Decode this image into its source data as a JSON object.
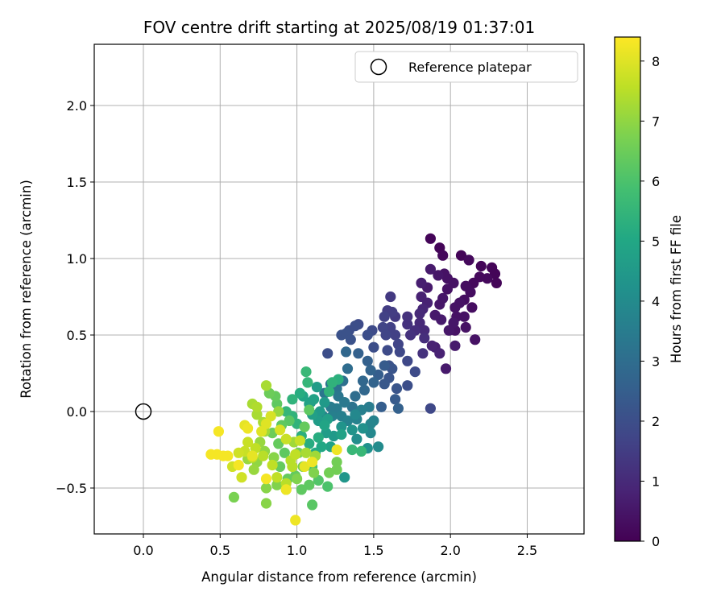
{
  "chart_data": {
    "type": "scatter",
    "title": "FOV centre drift starting at 2025/08/19 01:37:01",
    "xlabel": "Angular distance from reference (arcmin)",
    "ylabel": "Rotation from reference (arcmin)",
    "xlim": [
      -0.32,
      2.87
    ],
    "ylim": [
      -0.8,
      2.4
    ],
    "x_ticks": [
      "0.0",
      "0.5",
      "1.0",
      "1.5",
      "2.0",
      "2.5"
    ],
    "y_ticks": [
      "−0.5",
      "0.0",
      "0.5",
      "1.0",
      "1.5",
      "2.0"
    ],
    "grid": true,
    "legend": {
      "position": "top-right",
      "entries": [
        "Reference platepar"
      ]
    },
    "reference_point": {
      "x": 0.0,
      "y": 0.0
    },
    "colorbar": {
      "label": "Hours from first FF file",
      "min": 0,
      "max": 8.4,
      "ticks": [
        "0",
        "1",
        "2",
        "3",
        "4",
        "5",
        "6",
        "7",
        "8"
      ],
      "colormap": "viridis"
    },
    "series": [
      {
        "columns": [
          "x",
          "y",
          "hours"
        ],
        "points": [
          [
            1.87,
            1.13,
            0.1
          ],
          [
            1.93,
            1.07,
            0.1
          ],
          [
            1.95,
            1.02,
            0.2
          ],
          [
            2.07,
            1.02,
            0.1
          ],
          [
            2.12,
            0.99,
            0.2
          ],
          [
            2.2,
            0.95,
            0.1
          ],
          [
            2.27,
            0.94,
            0.1
          ],
          [
            2.29,
            0.9,
            0.1
          ],
          [
            2.24,
            0.87,
            0.2
          ],
          [
            2.3,
            0.84,
            0.1
          ],
          [
            2.19,
            0.88,
            0.2
          ],
          [
            2.15,
            0.84,
            0.2
          ],
          [
            2.1,
            0.82,
            0.3
          ],
          [
            2.13,
            0.78,
            0.3
          ],
          [
            2.09,
            0.73,
            0.3
          ],
          [
            2.06,
            0.71,
            0.4
          ],
          [
            2.03,
            0.68,
            0.4
          ],
          [
            2.14,
            0.68,
            0.3
          ],
          [
            2.09,
            0.62,
            0.4
          ],
          [
            2.04,
            0.62,
            0.4
          ],
          [
            2.02,
            0.58,
            0.5
          ],
          [
            2.1,
            0.55,
            0.4
          ],
          [
            2.16,
            0.47,
            0.4
          ],
          [
            1.99,
            0.53,
            0.5
          ],
          [
            2.03,
            0.53,
            0.4
          ],
          [
            2.03,
            0.43,
            0.6
          ],
          [
            1.97,
            0.28,
            0.6
          ],
          [
            1.9,
            0.42,
            0.7
          ],
          [
            1.93,
            0.38,
            0.8
          ],
          [
            1.88,
            0.43,
            0.8
          ],
          [
            1.94,
            0.6,
            0.6
          ],
          [
            1.9,
            0.63,
            0.6
          ],
          [
            1.93,
            0.7,
            0.5
          ],
          [
            1.95,
            0.74,
            0.5
          ],
          [
            1.98,
            0.8,
            0.4
          ],
          [
            2.02,
            0.84,
            0.4
          ],
          [
            1.98,
            0.87,
            0.4
          ],
          [
            1.96,
            0.9,
            0.4
          ],
          [
            1.92,
            0.89,
            0.5
          ],
          [
            1.87,
            0.93,
            0.6
          ],
          [
            1.81,
            0.84,
            0.7
          ],
          [
            1.85,
            0.81,
            0.6
          ],
          [
            1.81,
            0.75,
            0.8
          ],
          [
            1.85,
            0.71,
            0.8
          ],
          [
            1.82,
            0.67,
            0.9
          ],
          [
            1.8,
            0.64,
            1.0
          ],
          [
            1.8,
            0.58,
            1.0
          ],
          [
            1.83,
            0.53,
            1.0
          ],
          [
            1.77,
            0.53,
            1.1
          ],
          [
            1.74,
            0.5,
            1.2
          ],
          [
            1.83,
            0.48,
            1.1
          ],
          [
            1.82,
            0.38,
            1.2
          ],
          [
            1.72,
            0.57,
            1.2
          ],
          [
            1.72,
            0.62,
            1.2
          ],
          [
            1.64,
            0.62,
            1.4
          ],
          [
            1.59,
            0.66,
            1.5
          ],
          [
            1.62,
            0.65,
            1.5
          ],
          [
            1.61,
            0.75,
            1.4
          ],
          [
            1.57,
            0.62,
            1.6
          ],
          [
            1.56,
            0.55,
            1.7
          ],
          [
            1.61,
            0.55,
            1.6
          ],
          [
            1.58,
            0.5,
            1.7
          ],
          [
            1.64,
            0.5,
            1.6
          ],
          [
            1.66,
            0.44,
            1.7
          ],
          [
            1.67,
            0.39,
            1.8
          ],
          [
            1.72,
            0.33,
            1.8
          ],
          [
            1.59,
            0.4,
            1.9
          ],
          [
            1.49,
            0.53,
            1.9
          ],
          [
            1.5,
            0.42,
            2.0
          ],
          [
            1.46,
            0.5,
            2.0
          ],
          [
            1.4,
            0.57,
            1.9
          ],
          [
            1.38,
            0.56,
            2.0
          ],
          [
            1.34,
            0.53,
            2.0
          ],
          [
            1.29,
            0.5,
            2.1
          ],
          [
            1.32,
            0.51,
            2.1
          ],
          [
            1.35,
            0.47,
            2.1
          ],
          [
            1.2,
            0.38,
            2.0
          ],
          [
            1.77,
            0.26,
            1.9
          ],
          [
            1.87,
            0.02,
            1.8
          ],
          [
            1.72,
            0.17,
            2.0
          ],
          [
            1.65,
            0.15,
            2.2
          ],
          [
            1.64,
            0.08,
            2.4
          ],
          [
            1.55,
            0.03,
            2.5
          ],
          [
            1.6,
            0.22,
            2.2
          ],
          [
            1.62,
            0.28,
            2.2
          ],
          [
            1.57,
            0.3,
            2.4
          ],
          [
            1.53,
            0.24,
            2.5
          ],
          [
            1.5,
            0.19,
            2.7
          ],
          [
            1.44,
            0.14,
            2.8
          ],
          [
            1.48,
            0.27,
            2.7
          ],
          [
            1.46,
            0.33,
            2.6
          ],
          [
            1.4,
            0.38,
            2.6
          ],
          [
            1.43,
            0.2,
            2.8
          ],
          [
            1.38,
            0.1,
            3.0
          ],
          [
            1.36,
            0.03,
            3.2
          ],
          [
            1.32,
            0.39,
            2.8
          ],
          [
            1.33,
            0.28,
            3.0
          ],
          [
            1.3,
            0.2,
            3.1
          ],
          [
            1.26,
            0.15,
            3.2
          ],
          [
            1.22,
            0.18,
            3.2
          ],
          [
            1.18,
            0.12,
            3.3
          ],
          [
            1.27,
            0.1,
            3.3
          ],
          [
            1.31,
            0.06,
            3.4
          ],
          [
            1.26,
            0.02,
            3.5
          ],
          [
            1.22,
            0.03,
            3.5
          ],
          [
            1.17,
            -0.03,
            3.7
          ],
          [
            1.23,
            -0.03,
            3.6
          ],
          [
            1.29,
            -0.03,
            3.6
          ],
          [
            1.33,
            -0.06,
            3.7
          ],
          [
            1.39,
            -0.05,
            3.7
          ],
          [
            1.42,
            0.01,
            3.6
          ],
          [
            1.47,
            0.03,
            3.5
          ],
          [
            1.5,
            -0.06,
            3.7
          ],
          [
            1.48,
            -0.14,
            3.9
          ],
          [
            1.53,
            -0.23,
            4.0
          ],
          [
            1.46,
            -0.24,
            4.2
          ],
          [
            1.39,
            -0.18,
            4.1
          ],
          [
            1.43,
            -0.11,
            4.2
          ],
          [
            1.36,
            -0.12,
            4.3
          ],
          [
            1.29,
            -0.1,
            4.3
          ],
          [
            1.24,
            -0.16,
            4.5
          ],
          [
            1.19,
            -0.14,
            4.6
          ],
          [
            1.14,
            -0.06,
            4.6
          ],
          [
            1.15,
            0.0,
            4.5
          ],
          [
            1.1,
            -0.02,
            4.7
          ],
          [
            1.08,
            0.05,
            4.8
          ],
          [
            1.04,
            0.1,
            4.9
          ],
          [
            1.11,
            0.08,
            4.8
          ],
          [
            1.13,
            0.16,
            4.6
          ],
          [
            1.18,
            0.06,
            4.5
          ],
          [
            1.2,
            -0.05,
            4.7
          ],
          [
            1.31,
            -0.43,
            4.4
          ],
          [
            1.22,
            -0.23,
            4.8
          ],
          [
            1.16,
            -0.23,
            5.0
          ],
          [
            1.12,
            -0.27,
            5.1
          ],
          [
            1.08,
            -0.21,
            5.2
          ],
          [
            1.03,
            -0.16,
            5.3
          ],
          [
            1.0,
            -0.08,
            5.4
          ],
          [
            0.97,
            -0.03,
            5.4
          ],
          [
            0.93,
            0.0,
            5.5
          ],
          [
            0.97,
            0.08,
            5.4
          ],
          [
            1.02,
            0.12,
            5.2
          ],
          [
            1.06,
            0.26,
            5.6
          ],
          [
            1.07,
            0.19,
            5.5
          ],
          [
            1.23,
            0.19,
            5.4
          ],
          [
            1.27,
            0.21,
            5.3
          ],
          [
            1.21,
            0.13,
            5.4
          ],
          [
            1.42,
            -0.26,
            5.6
          ],
          [
            1.36,
            -0.25,
            5.6
          ],
          [
            1.1,
            -0.36,
            5.9
          ],
          [
            1.2,
            -0.49,
            6.0
          ],
          [
            1.14,
            -0.45,
            6.1
          ],
          [
            1.08,
            -0.48,
            6.3
          ],
          [
            1.03,
            -0.51,
            6.3
          ],
          [
            1.1,
            -0.61,
            6.2
          ],
          [
            0.99,
            -0.42,
            6.4
          ],
          [
            0.94,
            -0.44,
            6.4
          ],
          [
            0.89,
            -0.36,
            6.4
          ],
          [
            0.92,
            -0.27,
            6.3
          ],
          [
            0.88,
            -0.21,
            6.4
          ],
          [
            0.84,
            -0.14,
            6.5
          ],
          [
            0.9,
            -0.09,
            6.3
          ],
          [
            0.95,
            -0.06,
            6.2
          ],
          [
            0.87,
            0.05,
            6.3
          ],
          [
            0.86,
            0.1,
            6.4
          ],
          [
            0.82,
            0.12,
            6.5
          ],
          [
            1.08,
            0.01,
            6.3
          ],
          [
            1.05,
            -0.1,
            6.4
          ],
          [
            1.01,
            -0.27,
            6.6
          ],
          [
            1.04,
            -0.36,
            6.6
          ],
          [
            0.93,
            -0.51,
            6.6
          ],
          [
            0.87,
            -0.48,
            6.8
          ],
          [
            0.8,
            -0.5,
            6.9
          ],
          [
            0.8,
            -0.6,
            6.9
          ],
          [
            0.59,
            -0.56,
            6.7
          ],
          [
            1.0,
            -0.44,
            6.8
          ],
          [
            1.11,
            -0.4,
            6.8
          ],
          [
            1.26,
            -0.33,
            6.6
          ],
          [
            1.26,
            -0.38,
            6.6
          ],
          [
            1.21,
            -0.4,
            6.6
          ],
          [
            0.85,
            -0.3,
            6.9
          ],
          [
            0.79,
            -0.26,
            7.0
          ],
          [
            0.74,
            -0.33,
            7.0
          ],
          [
            0.68,
            -0.31,
            7.1
          ],
          [
            0.72,
            -0.38,
            7.1
          ],
          [
            0.76,
            -0.2,
            7.1
          ],
          [
            0.79,
            -0.13,
            7.2
          ],
          [
            0.78,
            -0.07,
            7.3
          ],
          [
            0.74,
            -0.02,
            7.3
          ],
          [
            0.71,
            0.05,
            7.3
          ],
          [
            0.74,
            0.03,
            7.4
          ],
          [
            0.8,
            0.17,
            7.3
          ],
          [
            0.88,
            0.0,
            7.1
          ],
          [
            0.98,
            -0.2,
            7.2
          ],
          [
            1.06,
            -0.27,
            7.3
          ],
          [
            1.12,
            -0.29,
            7.2
          ],
          [
            0.78,
            -0.29,
            7.5
          ],
          [
            0.73,
            -0.24,
            7.6
          ],
          [
            0.68,
            -0.2,
            7.7
          ],
          [
            0.66,
            -0.26,
            7.7
          ],
          [
            0.62,
            -0.27,
            7.8
          ],
          [
            0.58,
            -0.36,
            7.8
          ],
          [
            0.64,
            -0.43,
            7.8
          ],
          [
            0.71,
            -0.3,
            7.6
          ],
          [
            0.84,
            -0.35,
            7.6
          ],
          [
            0.87,
            -0.43,
            7.6
          ],
          [
            0.93,
            -0.47,
            7.5
          ],
          [
            0.97,
            -0.36,
            7.5
          ],
          [
            0.99,
            -0.28,
            7.6
          ],
          [
            1.02,
            -0.19,
            7.7
          ],
          [
            0.93,
            -0.18,
            7.7
          ],
          [
            0.89,
            -0.12,
            7.9
          ],
          [
            0.83,
            -0.03,
            7.9
          ],
          [
            0.8,
            -0.08,
            8.0
          ],
          [
            0.77,
            -0.13,
            8.0
          ],
          [
            0.66,
            -0.09,
            8.1
          ],
          [
            0.68,
            -0.11,
            8.2
          ],
          [
            0.52,
            -0.29,
            8.3
          ],
          [
            0.48,
            -0.28,
            8.3
          ],
          [
            0.44,
            -0.28,
            8.3
          ],
          [
            0.49,
            -0.13,
            8.3
          ],
          [
            0.55,
            -0.29,
            8.3
          ],
          [
            0.62,
            -0.35,
            8.3
          ],
          [
            0.8,
            -0.44,
            8.3
          ],
          [
            0.93,
            -0.51,
            8.2
          ],
          [
            0.99,
            -0.71,
            8.2
          ],
          [
            1.05,
            -0.36,
            8.1
          ],
          [
            1.26,
            -0.25,
            8.2
          ],
          [
            1.1,
            -0.33,
            8.2
          ],
          [
            0.71,
            -0.29,
            8.1
          ],
          [
            0.96,
            -0.32,
            7.5
          ],
          [
            1.14,
            -0.17,
            5.2
          ],
          [
            1.29,
            -0.15,
            4.8
          ],
          [
            1.18,
            -0.09,
            4.9
          ],
          [
            1.09,
            0.06,
            4.2
          ],
          [
            1.38,
            -0.02,
            3.9
          ],
          [
            1.48,
            -0.08,
            3.8
          ],
          [
            1.57,
            0.18,
            2.3
          ],
          [
            1.66,
            0.02,
            2.6
          ],
          [
            1.6,
            0.3,
            2.1
          ]
        ]
      }
    ]
  }
}
